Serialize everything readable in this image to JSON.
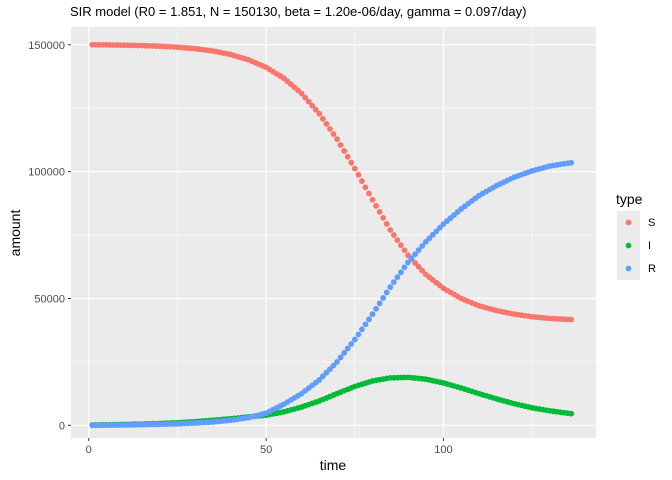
{
  "chart_data": {
    "type": "scatter",
    "title": "SIR model (R0 = 1.851, N = 150130, beta = 1.20e-06/day, gamma = 0.097/day)",
    "xlabel": "time",
    "ylabel": "amount",
    "xlim": [
      -5,
      143
    ],
    "ylim": [
      -5000,
      157000
    ],
    "x_ticks": [
      0,
      50,
      100
    ],
    "y_ticks": [
      0,
      50000,
      100000,
      150000
    ],
    "x_tick_labels": [
      "0",
      "50",
      "100"
    ],
    "y_tick_labels": [
      "0",
      "50000",
      "100000",
      "150000"
    ],
    "grid": true,
    "legend": {
      "title": "type",
      "position": "right",
      "entries": [
        "S",
        "I",
        "R"
      ]
    },
    "x": [
      1,
      5,
      10,
      15,
      20,
      25,
      30,
      35,
      40,
      45,
      50,
      55,
      60,
      65,
      70,
      75,
      80,
      85,
      90,
      95,
      100,
      105,
      110,
      115,
      120,
      125,
      130,
      136
    ],
    "series": [
      {
        "name": "S",
        "color": "#F8766D",
        "values": [
          150000,
          149950,
          149840,
          149680,
          149430,
          149050,
          148450,
          147550,
          146150,
          144100,
          141100,
          136800,
          130800,
          122800,
          112800,
          101200,
          88900,
          77000,
          67000,
          59500,
          54000,
          50000,
          47100,
          45200,
          43800,
          42800,
          42100,
          41700
        ]
      },
      {
        "name": "I",
        "color": "#00BA38",
        "values": [
          130,
          210,
          340,
          500,
          720,
          1020,
          1450,
          2000,
          2600,
          3300,
          4000,
          5300,
          7200,
          9600,
          12500,
          15300,
          17500,
          18700,
          18900,
          18200,
          16700,
          14700,
          12500,
          10400,
          8500,
          6900,
          5700,
          4600
        ]
      },
      {
        "name": "R",
        "color": "#619CFF",
        "values": [
          0,
          50,
          130,
          250,
          400,
          600,
          900,
          1300,
          2000,
          3000,
          4800,
          8300,
          12500,
          17900,
          25000,
          33800,
          43800,
          54500,
          64200,
          72300,
          79300,
          85300,
          90500,
          94500,
          97800,
          100300,
          102200,
          103500
        ]
      }
    ]
  }
}
